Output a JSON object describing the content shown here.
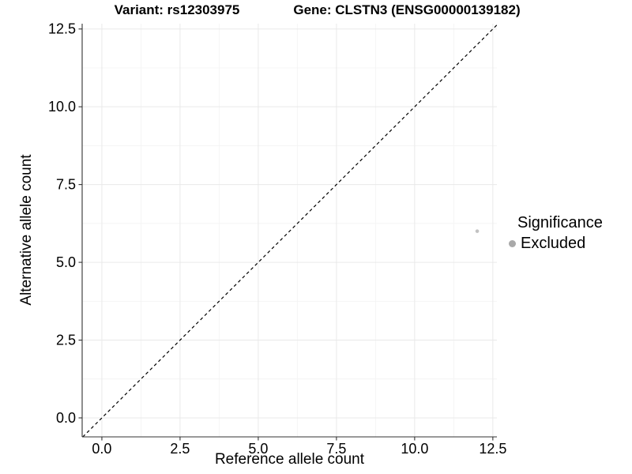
{
  "titles": {
    "variant": "Variant: rs12303975",
    "gene": "Gene: CLSTN3 (ENSG00000139182)"
  },
  "chart_data": {
    "type": "scatter",
    "title_left": "Variant: rs12303975",
    "title_right": "Gene: CLSTN3 (ENSG00000139182)",
    "xlabel": "Reference allele count",
    "ylabel": "Alternative allele count",
    "xlim": [
      -0.63,
      12.63
    ],
    "ylim": [
      -0.61,
      12.67
    ],
    "x_ticks": [
      0.0,
      2.5,
      5.0,
      7.5,
      10.0,
      12.5
    ],
    "y_ticks": [
      0.0,
      2.5,
      5.0,
      7.5,
      10.0,
      12.5
    ],
    "x_tick_labels": [
      "0.0",
      "2.5",
      "5.0",
      "7.5",
      "10.0",
      "12.5"
    ],
    "y_tick_labels": [
      "0.0",
      "2.5",
      "5.0",
      "7.5",
      "10.0",
      "12.5"
    ],
    "minor_ticks_x": [
      1.25,
      3.75,
      6.25,
      8.75,
      11.25
    ],
    "minor_ticks_y": [
      1.25,
      3.75,
      6.25,
      8.75,
      11.25
    ],
    "grid": true,
    "reference_line": {
      "type": "identity",
      "style": "dashed",
      "color": "#000000"
    },
    "points": [
      {
        "x": 12,
        "y": 6,
        "series": "Excluded",
        "color": "#c2c2c2",
        "radius": 2.3
      }
    ],
    "legend": {
      "title": "Significance",
      "position": "right",
      "items": [
        {
          "label": "Excluded",
          "color": "#a9a9a9",
          "marker": "circle"
        }
      ]
    },
    "colors": {
      "background": "#ffffff",
      "grid_major": "#e9e9e9",
      "grid_minor": "#f4f4f4",
      "axis_line": "#333333",
      "tick_mark": "#333333",
      "text": "#000000"
    }
  }
}
